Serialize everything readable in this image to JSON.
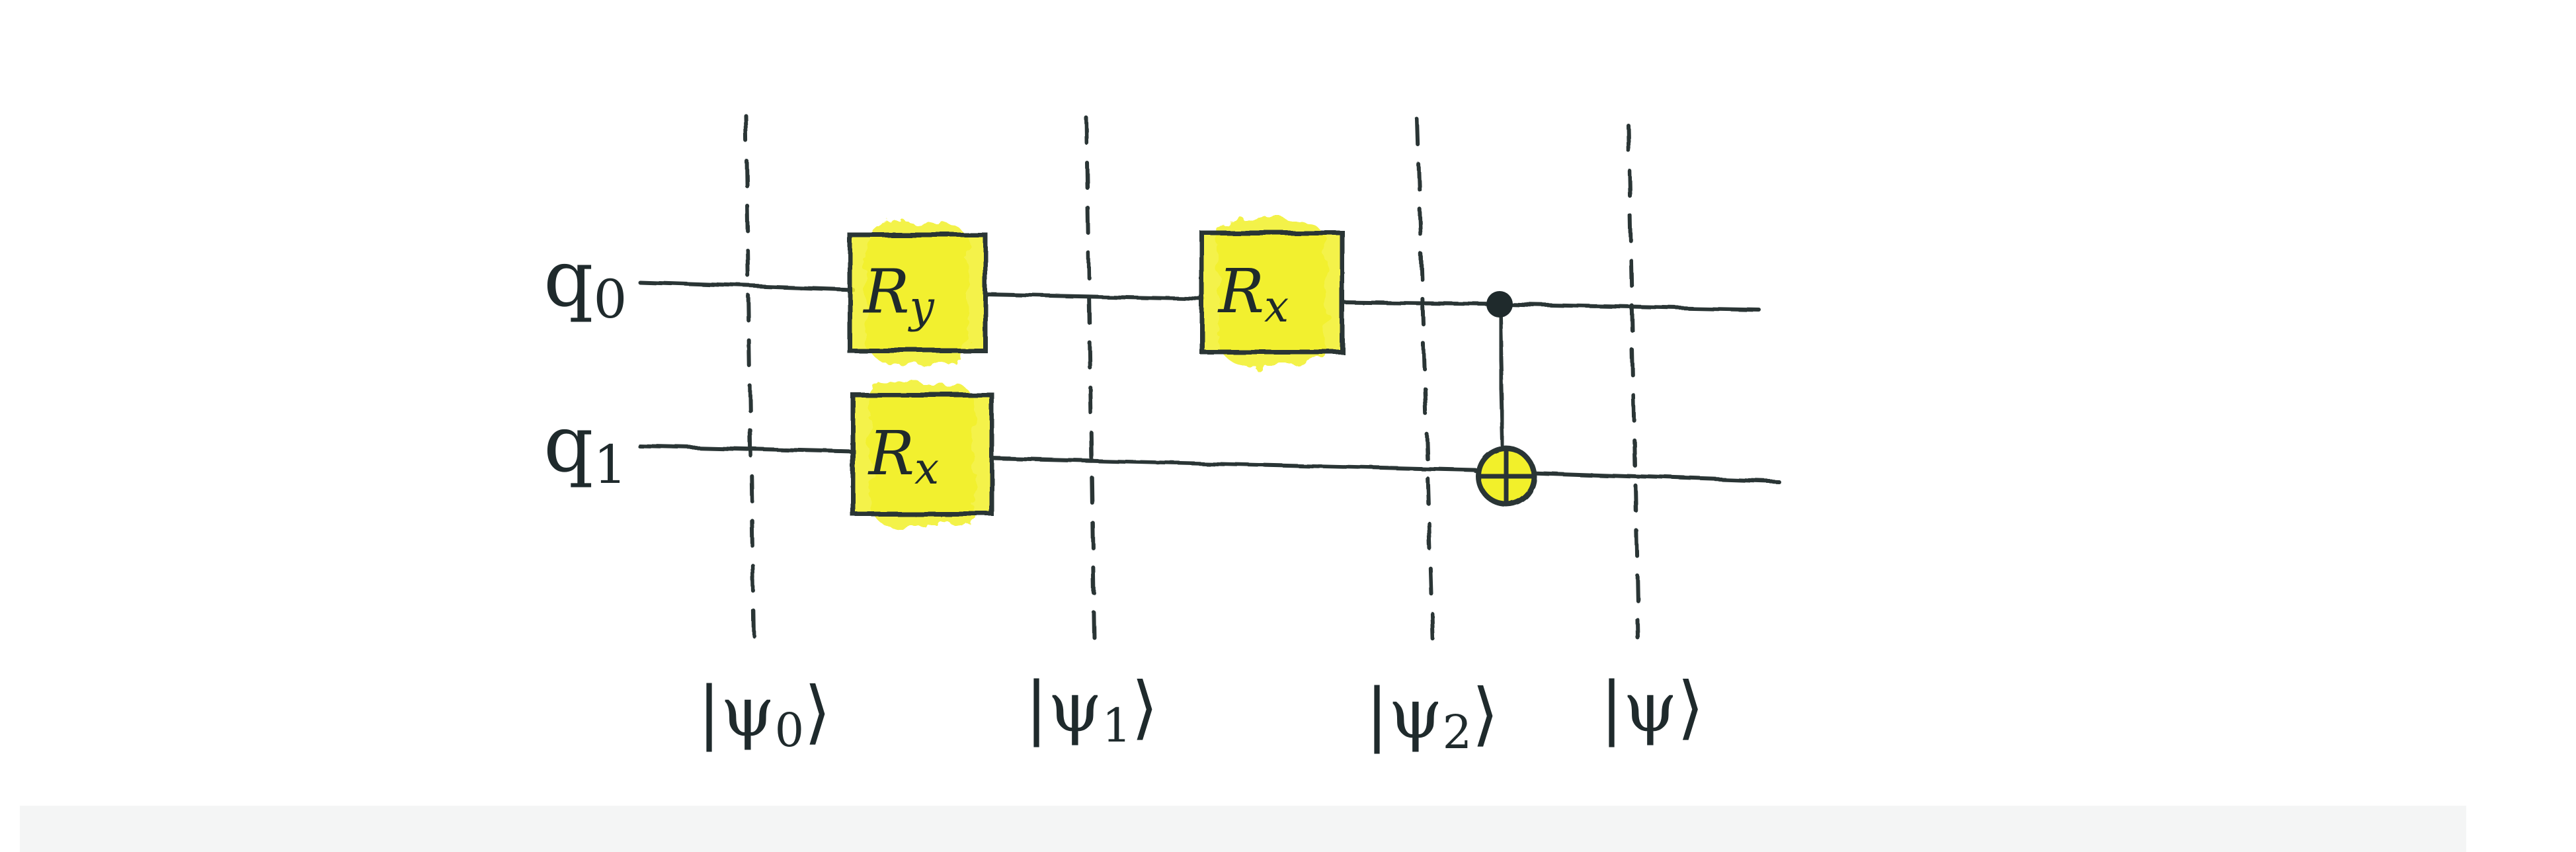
{
  "diagram": {
    "qubits": [
      {
        "label": "q",
        "index": "0"
      },
      {
        "label": "q",
        "index": "1"
      }
    ],
    "gates": [
      {
        "name": "R",
        "sub": "y",
        "target_qubit": 0
      },
      {
        "name": "R",
        "sub": "x",
        "target_qubit": 1
      },
      {
        "name": "R",
        "sub": "x",
        "target_qubit": 0
      }
    ],
    "cnot": {
      "control_qubit": 0,
      "target_qubit": 1
    },
    "state_labels": [
      {
        "prefix": "|ψ",
        "sub": "0",
        "suffix": "⟩"
      },
      {
        "prefix": "|ψ",
        "sub": "1",
        "suffix": "⟩"
      },
      {
        "prefix": "|ψ",
        "sub": "2",
        "suffix": "⟩"
      },
      {
        "prefix": "|ψ",
        "sub": "",
        "suffix": "⟩"
      }
    ],
    "colors": {
      "ink": "#1f2a2c",
      "highlight": "#f2f02a",
      "paper": "#ffffff",
      "paper_shadow": "#f3f4f4"
    }
  }
}
